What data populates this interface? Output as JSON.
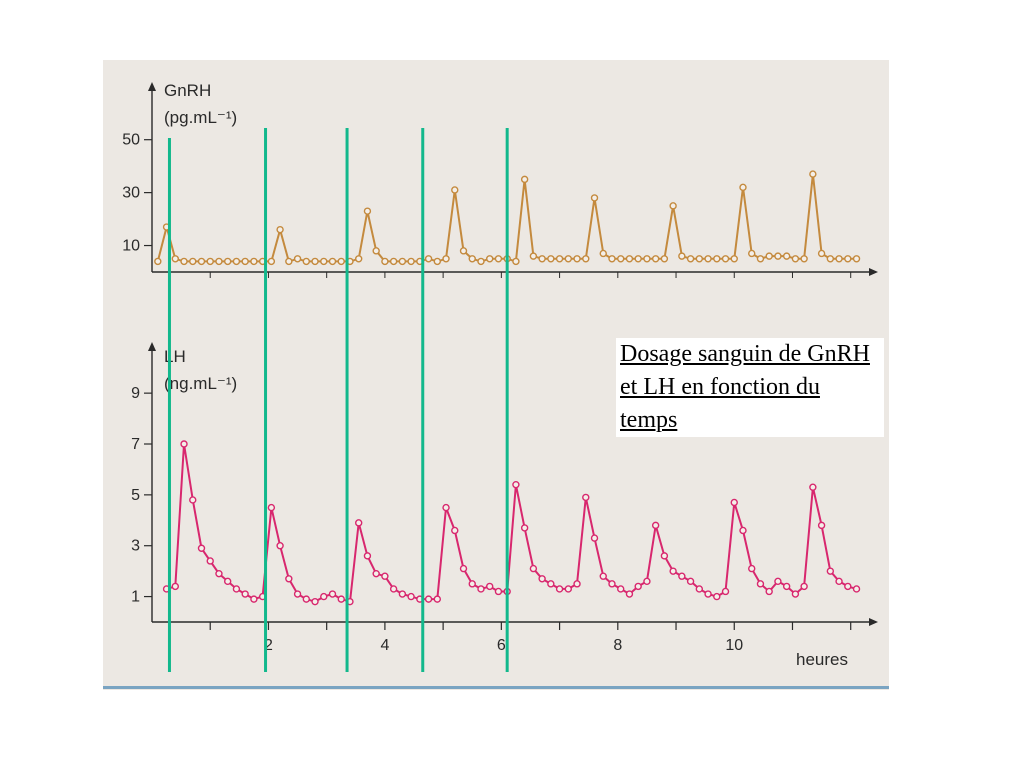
{
  "caption": "Dosage sanguin de GnRH et LH en fonction du temps",
  "colors": {
    "gnrh": "#c48a3e",
    "lh": "#d8276e",
    "markers": "#12b88c",
    "axis": "#2a2a2a",
    "background": "#ece8e3"
  },
  "chart_data": [
    {
      "type": "line",
      "ylabel": "GnRH",
      "yunit": "(pg.mL⁻¹)",
      "yticks": [
        "10",
        "30",
        "50"
      ],
      "ytick_values": [
        10,
        30,
        50
      ],
      "ylim": [
        0,
        65
      ],
      "xlim": [
        0,
        12.4
      ],
      "grid": false,
      "series": [
        {
          "x": [
            0.1,
            0.25,
            0.4,
            0.55,
            0.7,
            0.85,
            1.0,
            1.15,
            1.3,
            1.45,
            1.6,
            1.75,
            1.9,
            2.05,
            2.2,
            2.35,
            2.5,
            2.65,
            2.8,
            2.95,
            3.1,
            3.25,
            3.4,
            3.55,
            3.7,
            3.85,
            4.0,
            4.15,
            4.3,
            4.45,
            4.6,
            4.75,
            4.9,
            5.05,
            5.2,
            5.35,
            5.5,
            5.65,
            5.8,
            5.95,
            6.1,
            6.25,
            6.4,
            6.55,
            6.7,
            6.85,
            7.0,
            7.15,
            7.3,
            7.45,
            7.6,
            7.75,
            7.9,
            8.05,
            8.2,
            8.35,
            8.5,
            8.65,
            8.8,
            8.95,
            9.1,
            9.25,
            9.4,
            9.55,
            9.7,
            9.85,
            10.0,
            10.15,
            10.3,
            10.45,
            10.6,
            10.75,
            10.9,
            11.05,
            11.2,
            11.35,
            11.5,
            11.65,
            11.8,
            11.95,
            12.1
          ],
          "values": [
            4,
            17,
            5,
            4,
            4,
            4,
            4,
            4,
            4,
            4,
            4,
            4,
            4,
            4,
            16,
            4,
            5,
            4,
            4,
            4,
            4,
            4,
            4,
            5,
            23,
            8,
            4,
            4,
            4,
            4,
            4,
            5,
            4,
            5,
            31,
            8,
            5,
            4,
            5,
            5,
            5,
            4,
            35,
            6,
            5,
            5,
            5,
            5,
            5,
            5,
            28,
            7,
            5,
            5,
            5,
            5,
            5,
            5,
            5,
            25,
            6,
            5,
            5,
            5,
            5,
            5,
            5,
            32,
            7,
            5,
            6,
            6,
            6,
            5,
            5,
            37,
            7,
            5,
            5,
            5,
            5
          ]
        }
      ]
    },
    {
      "type": "line",
      "ylabel": "LH",
      "yunit": "(ng.mL⁻¹)",
      "xlabel": "heures",
      "yticks": [
        "1",
        "3",
        "5",
        "7",
        "9"
      ],
      "ytick_values": [
        1,
        3,
        5,
        7,
        9
      ],
      "xticks": [
        "2",
        "4",
        "6",
        "8",
        "10"
      ],
      "xtick_values": [
        2,
        4,
        6,
        8,
        10
      ],
      "ylim": [
        0,
        10.5
      ],
      "xlim": [
        0,
        12.4
      ],
      "grid": false,
      "series": [
        {
          "x": [
            0.25,
            0.4,
            0.55,
            0.7,
            0.85,
            1.0,
            1.15,
            1.3,
            1.45,
            1.6,
            1.75,
            1.9,
            2.05,
            2.2,
            2.35,
            2.5,
            2.65,
            2.8,
            2.95,
            3.1,
            3.25,
            3.4,
            3.55,
            3.7,
            3.85,
            4.0,
            4.15,
            4.3,
            4.45,
            4.6,
            4.75,
            4.9,
            5.05,
            5.2,
            5.35,
            5.5,
            5.65,
            5.8,
            5.95,
            6.1,
            6.25,
            6.4,
            6.55,
            6.7,
            6.85,
            7.0,
            7.15,
            7.3,
            7.45,
            7.6,
            7.75,
            7.9,
            8.05,
            8.2,
            8.35,
            8.5,
            8.65,
            8.8,
            8.95,
            9.1,
            9.25,
            9.4,
            9.55,
            9.7,
            9.85,
            10.0,
            10.15,
            10.3,
            10.45,
            10.6,
            10.75,
            10.9,
            11.05,
            11.2,
            11.35,
            11.5,
            11.65,
            11.8,
            11.95,
            12.1
          ],
          "values": [
            1.3,
            1.4,
            7.0,
            4.8,
            2.9,
            2.4,
            1.9,
            1.6,
            1.3,
            1.1,
            0.9,
            1.0,
            4.5,
            3.0,
            1.7,
            1.1,
            0.9,
            0.8,
            1.0,
            1.1,
            0.9,
            0.8,
            3.9,
            2.6,
            1.9,
            1.8,
            1.3,
            1.1,
            1.0,
            0.9,
            0.9,
            0.9,
            4.5,
            3.6,
            2.1,
            1.5,
            1.3,
            1.4,
            1.2,
            1.2,
            5.4,
            3.7,
            2.1,
            1.7,
            1.5,
            1.3,
            1.3,
            1.5,
            4.9,
            3.3,
            1.8,
            1.5,
            1.3,
            1.1,
            1.4,
            1.6,
            3.8,
            2.6,
            2.0,
            1.8,
            1.6,
            1.3,
            1.1,
            1.0,
            1.2,
            4.7,
            3.6,
            2.1,
            1.5,
            1.2,
            1.6,
            1.4,
            1.1,
            1.4,
            5.3,
            3.8,
            2.0,
            1.6,
            1.4,
            1.3
          ]
        }
      ]
    }
  ],
  "markers": {
    "x": [
      0.3,
      1.95,
      3.35,
      4.65,
      6.1
    ]
  }
}
